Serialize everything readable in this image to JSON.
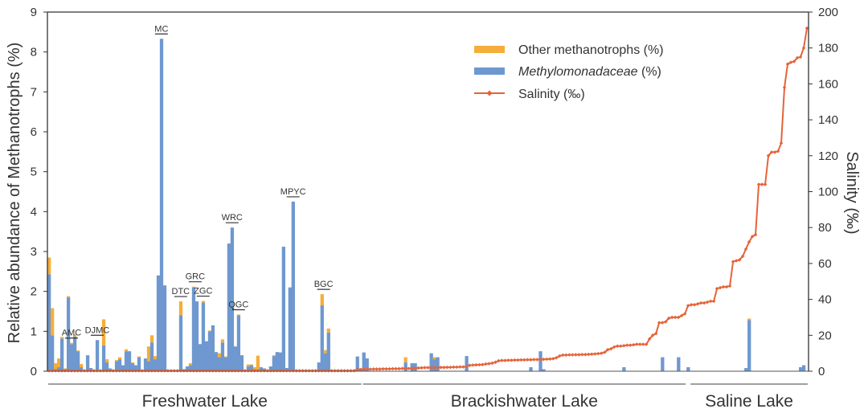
{
  "chart_data": {
    "type": "bar",
    "subtype": "stacked bar with line on secondary axis",
    "ylabel": "Relative abundance of Methanotrophs (%)",
    "y2label": "Salinity (‰)",
    "ylim": [
      0,
      9
    ],
    "y2lim": [
      0,
      200
    ],
    "yticks": [
      0,
      1,
      2,
      3,
      4,
      5,
      6,
      7,
      8,
      9
    ],
    "y2ticks": [
      0,
      20,
      40,
      60,
      80,
      100,
      120,
      140,
      160,
      180,
      200
    ],
    "grid": false,
    "legend_position": "top-center-right",
    "n_samples": 237,
    "colors": {
      "other": "#f5ae3a",
      "methylo": "#6e98cf",
      "salinity": "#e4643a",
      "axis": "#333333"
    },
    "legend": [
      {
        "key": "other",
        "label": "Other methanotrophs (%)",
        "italic_part": ""
      },
      {
        "key": "methylo",
        "label": "Methylomonadaceae",
        "suffix": " (%)"
      },
      {
        "key": "salinity",
        "label": "Salinity (‰)"
      }
    ],
    "series": [
      {
        "name": "Methylomonadaceae (%)",
        "key": "methylo",
        "values": [
          2.43,
          0.9,
          0.05,
          0.1,
          0.82,
          0.05,
          1.85,
          0.68,
          0.87,
          0.5,
          0.1,
          0.02,
          0.4,
          0.08,
          0.02,
          0.78,
          0,
          0.65,
          0.22,
          0.07,
          0,
          0.25,
          0.3,
          0.15,
          0.5,
          0.5,
          0.2,
          0.15,
          0.35,
          0,
          0.32,
          0.25,
          0.72,
          0.3,
          2.4,
          8.33,
          2.15,
          0,
          0,
          0,
          0,
          1.4,
          0.05,
          0.12,
          0.15,
          2.1,
          1.75,
          0.68,
          1.72,
          0.75,
          1.0,
          1.15,
          0.48,
          0.35,
          0.72,
          0.35,
          3.2,
          3.6,
          0.62,
          1.4,
          0.4,
          0.02,
          0.12,
          0.15,
          0.05,
          0.02,
          0.1,
          0.07,
          0.02,
          0.12,
          0.38,
          0.48,
          0.47,
          3.12,
          0.08,
          2.1,
          4.25,
          0,
          0,
          0,
          0,
          0,
          0,
          0,
          0.22,
          1.65,
          0.45,
          0.97,
          0.02,
          0.02,
          0.02,
          0.02,
          0.02,
          0.02,
          0.02,
          0,
          0.37,
          0.05,
          0.47,
          0.32,
          0,
          0,
          0,
          0,
          0,
          0,
          0,
          0,
          0,
          0,
          0,
          0.22,
          0,
          0.2,
          0.2,
          0,
          0,
          0,
          0,
          0.45,
          0.3,
          0.35,
          0,
          0,
          0,
          0,
          0,
          0,
          0,
          0,
          0.38,
          0,
          0,
          0,
          0,
          0,
          0,
          0,
          0,
          0,
          0,
          0,
          0,
          0,
          0,
          0,
          0,
          0,
          0,
          0,
          0.1,
          0,
          0,
          0.5,
          0.05,
          0,
          0,
          0,
          0,
          0,
          0,
          0,
          0,
          0,
          0,
          0,
          0,
          0,
          0,
          0,
          0,
          0,
          0,
          0,
          0,
          0,
          0,
          0,
          0,
          0.1,
          0,
          0,
          0,
          0,
          0,
          0,
          0,
          0,
          0,
          0,
          0,
          0.35,
          0,
          0,
          0,
          0,
          0.35,
          0,
          0,
          0.1,
          0,
          0,
          0,
          0,
          0,
          0,
          0,
          0,
          0,
          0,
          0,
          0,
          0,
          0,
          0,
          0,
          0,
          0.08,
          1.28,
          0,
          0,
          0,
          0,
          0,
          0,
          0,
          0,
          0,
          0,
          0,
          0,
          0,
          0,
          0,
          0.1,
          0.15,
          0
        ]
      },
      {
        "name": "Other methanotrophs (%)",
        "key": "other",
        "values": [
          0.42,
          0.68,
          0.15,
          0.22,
          0.04,
          0.02,
          0.03,
          0.03,
          0.05,
          0.02,
          0.08,
          0,
          0,
          0,
          0,
          0,
          0,
          0.65,
          0.08,
          0,
          0,
          0.03,
          0.05,
          0,
          0.05,
          0,
          0.02,
          0,
          0.02,
          0,
          0,
          0.37,
          0.18,
          0.08,
          0,
          0,
          0,
          0,
          0,
          0,
          0,
          0.35,
          0,
          0,
          0.05,
          0.02,
          0,
          0,
          0.04,
          0,
          0.02,
          0,
          0,
          0.1,
          0.08,
          0.02,
          0,
          0,
          0,
          0.02,
          0,
          0,
          0.05,
          0.02,
          0.05,
          0.37,
          0,
          0,
          0,
          0,
          0.02,
          0,
          0,
          0,
          0,
          0,
          0,
          0,
          0,
          0,
          0,
          0,
          0,
          0,
          0,
          0.28,
          0.08,
          0.1,
          0,
          0,
          0,
          0,
          0,
          0,
          0,
          0,
          0,
          0,
          0,
          0,
          0,
          0,
          0,
          0,
          0,
          0,
          0,
          0,
          0,
          0,
          0,
          0.13,
          0,
          0,
          0,
          0,
          0,
          0,
          0,
          0,
          0.05,
          0,
          0,
          0,
          0,
          0,
          0,
          0,
          0,
          0,
          0,
          0,
          0,
          0,
          0,
          0,
          0,
          0,
          0,
          0,
          0,
          0,
          0,
          0,
          0,
          0,
          0,
          0,
          0,
          0,
          0,
          0,
          0,
          0,
          0,
          0,
          0,
          0,
          0,
          0,
          0,
          0,
          0,
          0,
          0,
          0,
          0,
          0,
          0,
          0,
          0,
          0,
          0,
          0,
          0,
          0,
          0,
          0,
          0,
          0,
          0,
          0,
          0,
          0,
          0,
          0,
          0,
          0,
          0,
          0,
          0,
          0,
          0,
          0,
          0,
          0,
          0,
          0,
          0,
          0,
          0,
          0,
          0,
          0,
          0,
          0,
          0,
          0,
          0,
          0,
          0,
          0,
          0,
          0,
          0,
          0,
          0,
          0,
          0.04,
          0
        ]
      },
      {
        "name": "Salinity (‰)",
        "key": "salinity",
        "axis": "right",
        "values": [
          0.3,
          0.3,
          0.3,
          0.3,
          0.3,
          0.3,
          0.3,
          0.3,
          0.3,
          0.3,
          0.3,
          0.3,
          0.3,
          0.3,
          0.3,
          0.3,
          0.3,
          0.3,
          0.3,
          0.3,
          0.3,
          0.3,
          0.3,
          0.3,
          0.3,
          0.3,
          0.3,
          0.3,
          0.3,
          0.3,
          0.3,
          0.3,
          0.3,
          0.3,
          0.3,
          0.3,
          0.3,
          0.3,
          0.3,
          0.3,
          0.3,
          0.3,
          0.3,
          0.3,
          0.3,
          0.3,
          0.3,
          0.3,
          0.3,
          0.3,
          0.3,
          0.3,
          0.3,
          0.3,
          0.3,
          0.3,
          0.3,
          0.3,
          0.3,
          0.3,
          0.3,
          0.3,
          0.3,
          0.3,
          0.3,
          0.3,
          0.3,
          0.3,
          0.3,
          0.3,
          0.3,
          0.3,
          0.3,
          0.3,
          0.3,
          0.3,
          0.3,
          0.3,
          0.3,
          0.3,
          0.3,
          0.3,
          0.3,
          0.3,
          0.3,
          0.3,
          0.3,
          0.3,
          0.3,
          0.3,
          0.3,
          0.3,
          0.3,
          0.3,
          0.3,
          0.3,
          1.0,
          1.0,
          1.1,
          1.1,
          1.1,
          1.2,
          1.2,
          1.2,
          1.3,
          1.3,
          1.3,
          1.4,
          1.4,
          1.4,
          1.5,
          1.5,
          1.5,
          1.6,
          1.7,
          1.8,
          1.9,
          2.0,
          2.0,
          2.0,
          2.0,
          2.0,
          2.1,
          2.1,
          2.2,
          2.2,
          2.3,
          2.3,
          2.4,
          2.4,
          2.5,
          3.3,
          3.4,
          3.5,
          3.6,
          3.7,
          4.0,
          4.2,
          4.5,
          5.0,
          5.8,
          6.0,
          6.0,
          6.1,
          6.1,
          6.2,
          6.2,
          6.3,
          6.3,
          6.4,
          6.4,
          6.5,
          6.5,
          6.6,
          6.6,
          6.7,
          6.8,
          7.0,
          7.5,
          8.5,
          9.0,
          9.0,
          9.1,
          9.1,
          9.2,
          9.2,
          9.3,
          9.3,
          9.4,
          9.5,
          9.6,
          9.8,
          10.0,
          10.5,
          12.0,
          12.5,
          13.5,
          14.0,
          14.0,
          14.2,
          14.5,
          14.5,
          14.7,
          15.0,
          15.0,
          15.0,
          15.0,
          18.0,
          20.0,
          21.0,
          27.0,
          27.0,
          27.5,
          29.5,
          30.0,
          30.0,
          30.0,
          31.0,
          32.0,
          36.5,
          37.0,
          37.0,
          37.5,
          38.0,
          38.0,
          38.5,
          39.0,
          39.0,
          46.0,
          46.5,
          47.0,
          47.0,
          47.5,
          61.0,
          61.5,
          62.0,
          64.0,
          68.0,
          72.0,
          75.0,
          76.0,
          104.0,
          104.0,
          104.0,
          120.0,
          122.0,
          122.0,
          122.5,
          127.0,
          158.0,
          171.0,
          172.0,
          172.5,
          174.5,
          175.0,
          180.0,
          191.0
        ]
      }
    ],
    "annotations": [
      {
        "label": "AMC",
        "sample": 7
      },
      {
        "label": "DJMC",
        "sample": 15
      },
      {
        "label": "MC",
        "sample": 35
      },
      {
        "label": "DTC",
        "sample": 41
      },
      {
        "label": "GRC",
        "sample": 45.5
      },
      {
        "label": "ZGC",
        "sample": 48
      },
      {
        "label": "WRC",
        "sample": 57
      },
      {
        "label": "QGC",
        "sample": 59
      },
      {
        "label": "MPYC",
        "sample": 76
      },
      {
        "label": "BGC",
        "sample": 85.5
      }
    ],
    "groups": [
      {
        "label": "Freshwater Lake",
        "start": 0,
        "end": 97
      },
      {
        "label": "Brackishwater Lake",
        "start": 98,
        "end": 198
      },
      {
        "label": "Saline Lake",
        "start": 200,
        "end": 236
      }
    ]
  }
}
